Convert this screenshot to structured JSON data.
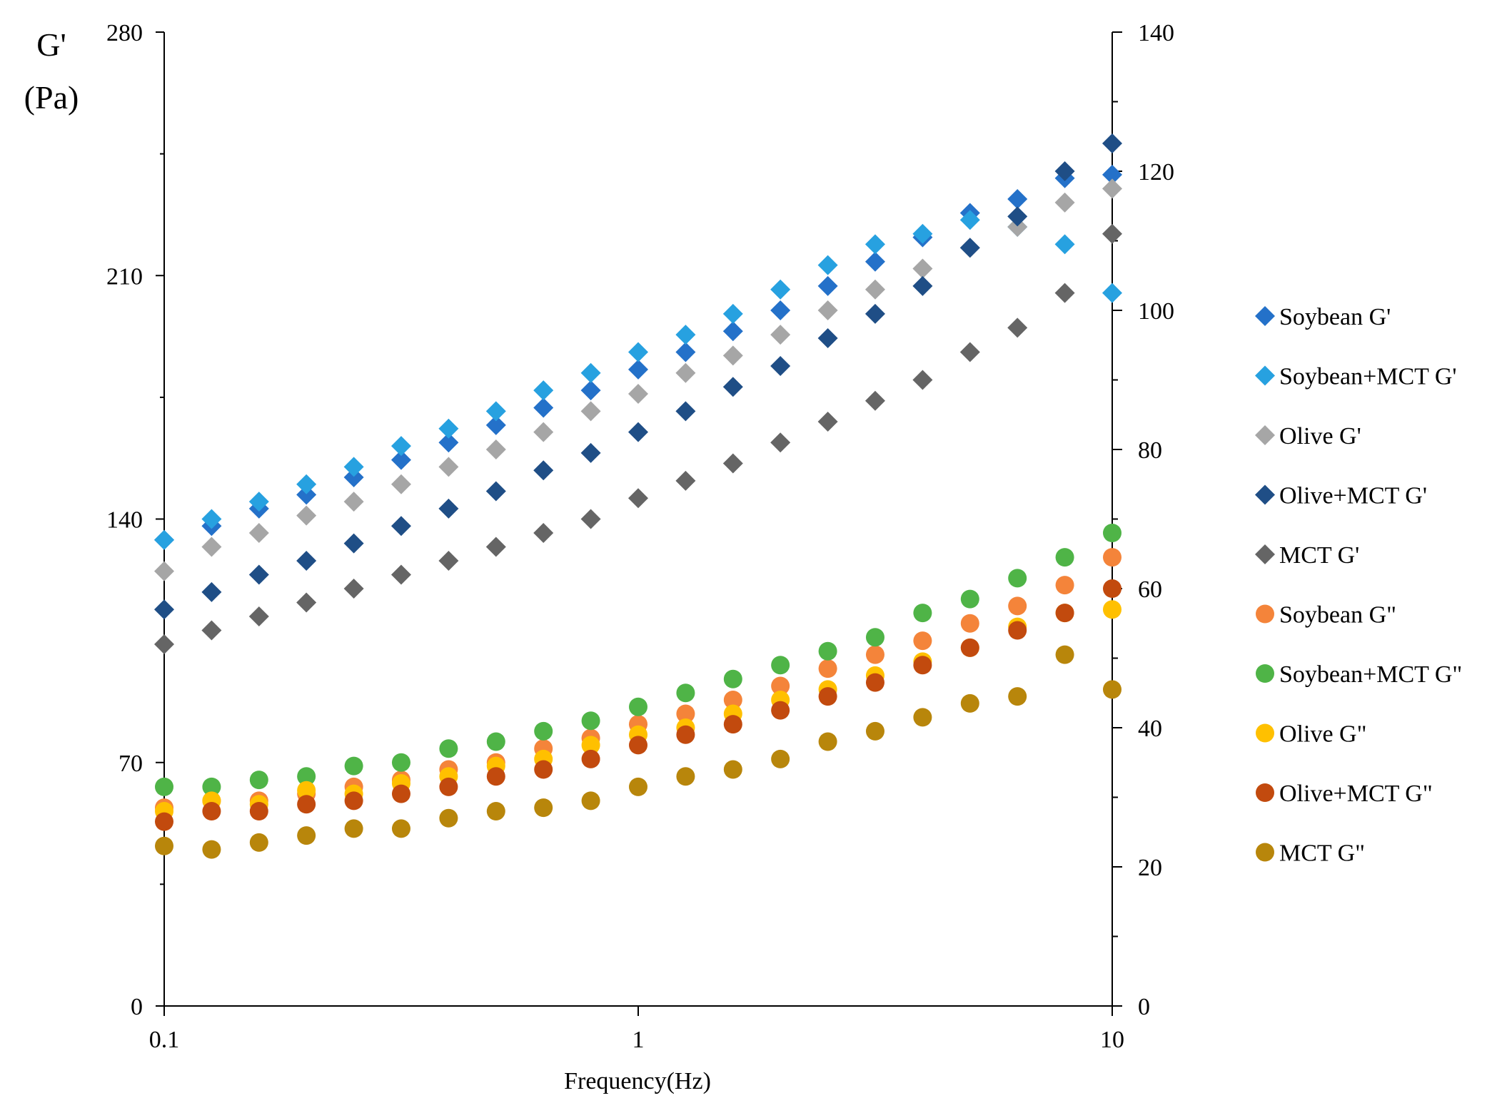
{
  "chart_data": {
    "type": "scatter",
    "title": "",
    "xlabel": "Frequency(Hz)",
    "ylabel_left": [
      "G'",
      "(Pa)"
    ],
    "ylabel_right": "",
    "x_scale": "log",
    "xlim": [
      0.1,
      10
    ],
    "x_ticks": [
      0.1,
      1,
      10
    ],
    "x_tick_labels": [
      "0.1",
      "1",
      "10"
    ],
    "ylim_left": [
      0,
      280
    ],
    "y_ticks_left": [
      0,
      70,
      140,
      210,
      280
    ],
    "y_tick_labels_left": [
      "0",
      "70",
      "140",
      "210",
      "280"
    ],
    "ylim_right": [
      0,
      140
    ],
    "y_ticks_right": [
      0,
      20,
      40,
      60,
      80,
      100,
      120,
      140
    ],
    "y_tick_labels_right": [
      "0",
      "20",
      "40",
      "60",
      "80",
      "100",
      "120",
      "140"
    ],
    "grid": false,
    "legend_position": "right",
    "x": [
      0.1,
      0.1259,
      0.1585,
      0.1995,
      0.2512,
      0.3162,
      0.3981,
      0.5012,
      0.631,
      0.7943,
      1.0,
      1.259,
      1.585,
      1.995,
      2.512,
      3.162,
      3.981,
      5.012,
      6.31,
      7.943,
      10.0
    ],
    "series": [
      {
        "name": "Soybean G'",
        "marker": "diamond",
        "color": "#2471C9",
        "axis": "left",
        "values": [
          134,
          138,
          143,
          147,
          152,
          157,
          162,
          167,
          172,
          177,
          183,
          188,
          194,
          200,
          207,
          214,
          221,
          228,
          232,
          238,
          239
        ]
      },
      {
        "name": "Soybean+MCT G'",
        "marker": "diamond",
        "color": "#27A1E0",
        "axis": "left",
        "values": [
          134,
          140,
          145,
          150,
          155,
          161,
          166,
          171,
          177,
          182,
          188,
          193,
          199,
          206,
          213,
          219,
          222,
          226,
          224,
          219,
          205
        ]
      },
      {
        "name": "Olive G'",
        "marker": "diamond",
        "color": "#A6A6A6",
        "axis": "left",
        "values": [
          125,
          132,
          136,
          141,
          145,
          150,
          155,
          160,
          165,
          171,
          176,
          182,
          187,
          193,
          200,
          206,
          212,
          218,
          224,
          231,
          235
        ]
      },
      {
        "name": "Olive+MCT G'",
        "marker": "diamond",
        "color": "#1F4E86",
        "axis": "left",
        "values": [
          114,
          119,
          124,
          128,
          133,
          138,
          143,
          148,
          154,
          159,
          165,
          171,
          178,
          184,
          192,
          199,
          207,
          218,
          227,
          240,
          248
        ]
      },
      {
        "name": "MCT G'",
        "marker": "diamond",
        "color": "#656565",
        "axis": "left",
        "values": [
          104,
          108,
          112,
          116,
          120,
          124,
          128,
          132,
          136,
          140,
          146,
          151,
          156,
          162,
          168,
          174,
          180,
          188,
          195,
          205,
          222
        ]
      },
      {
        "name": "Soybean G\"",
        "marker": "circle",
        "color": "#F4843A",
        "axis": "left",
        "values": [
          57,
          59,
          59,
          61,
          63,
          65,
          68,
          70,
          74,
          77,
          81,
          84,
          88,
          92,
          97,
          101,
          105,
          110,
          115,
          121,
          129
        ]
      },
      {
        "name": "Soybean+MCT G\"",
        "marker": "circle",
        "color": "#4FB447",
        "axis": "left",
        "values": [
          63,
          63,
          65,
          66,
          69,
          70,
          74,
          76,
          79,
          82,
          86,
          90,
          94,
          98,
          102,
          106,
          113,
          117,
          123,
          129,
          136
        ]
      },
      {
        "name": "Olive G\"",
        "marker": "circle",
        "color": "#FFC000",
        "axis": "left",
        "values": [
          56,
          59,
          58,
          62,
          61,
          64,
          66,
          69,
          71,
          75,
          78,
          80,
          84,
          88,
          91,
          95,
          99,
          103,
          109,
          113,
          114
        ]
      },
      {
        "name": "Olive+MCT G\"",
        "marker": "circle",
        "color": "#C24A0E",
        "axis": "left",
        "values": [
          53,
          56,
          56,
          58,
          59,
          61,
          63,
          66,
          68,
          71,
          75,
          78,
          81,
          85,
          89,
          93,
          98,
          103,
          108,
          113,
          120
        ]
      },
      {
        "name": "MCT G\"",
        "marker": "circle",
        "color": "#B8860B",
        "axis": "left",
        "values": [
          46,
          45,
          47,
          49,
          51,
          51,
          54,
          56,
          57,
          59,
          63,
          66,
          68,
          71,
          76,
          79,
          83,
          87,
          89,
          101,
          91
        ]
      }
    ]
  }
}
